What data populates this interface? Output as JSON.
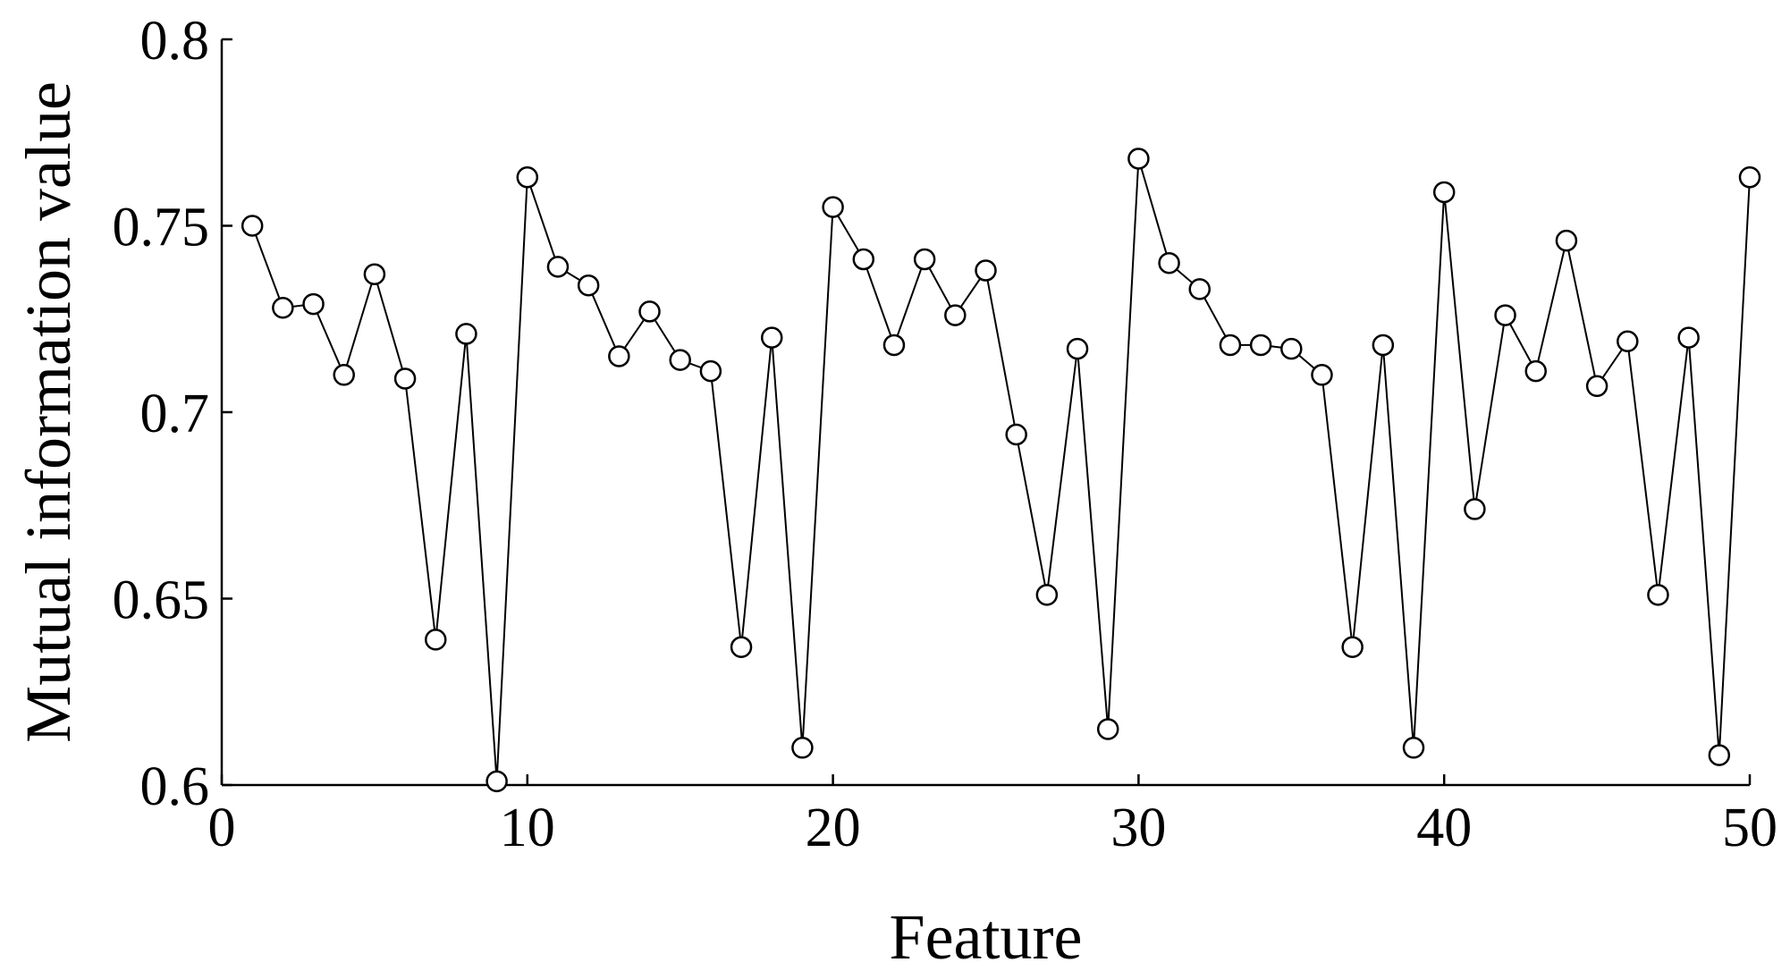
{
  "chart_data": {
    "type": "line",
    "title": "",
    "xlabel": "Feature",
    "ylabel": "Mutual information value",
    "xlim": [
      0,
      50
    ],
    "ylim": [
      0.6,
      0.8
    ],
    "x_ticks": [
      0,
      10,
      20,
      30,
      40,
      50
    ],
    "x_tick_labels": [
      "0",
      "10",
      "20",
      "30",
      "40",
      "50"
    ],
    "y_ticks": [
      0.6,
      0.65,
      0.7,
      0.75,
      0.8
    ],
    "y_tick_labels": [
      "0.6",
      "0.65",
      "0.7",
      "0.75",
      "0.8"
    ],
    "grid": false,
    "legend": "none",
    "marker": "open-circle",
    "line_color": "#000000",
    "series": [
      {
        "x": [
          1,
          2,
          3,
          4,
          5,
          6,
          7,
          8,
          9,
          10,
          11,
          12,
          13,
          14,
          15,
          16,
          17,
          18,
          19,
          20,
          21,
          22,
          23,
          24,
          25,
          26,
          27,
          28,
          29,
          30,
          31,
          32,
          33,
          34,
          35,
          36,
          37,
          38,
          39,
          40,
          41,
          42,
          43,
          44,
          45,
          46,
          47,
          48,
          49,
          50
        ],
        "values": [
          0.75,
          0.728,
          0.729,
          0.71,
          0.737,
          0.709,
          0.639,
          0.721,
          0.601,
          0.763,
          0.739,
          0.734,
          0.715,
          0.727,
          0.714,
          0.711,
          0.637,
          0.72,
          0.61,
          0.755,
          0.741,
          0.718,
          0.741,
          0.726,
          0.738,
          0.694,
          0.651,
          0.717,
          0.615,
          0.768,
          0.74,
          0.733,
          0.718,
          0.718,
          0.717,
          0.71,
          0.637,
          0.718,
          0.61,
          0.759,
          0.674,
          0.726,
          0.711,
          0.746,
          0.707,
          0.719,
          0.651,
          0.72,
          0.608,
          0.763
        ]
      }
    ]
  }
}
